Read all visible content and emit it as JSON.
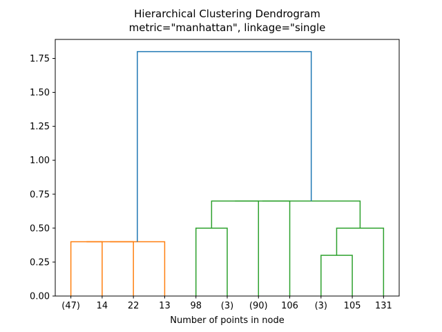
{
  "figure": {
    "background": "#ffffff",
    "axes_edge_color": "#000000"
  },
  "chart_data": {
    "type": "dendrogram",
    "title_line1": "Hierarchical Clustering Dendrogram",
    "title_line2": "metric=\"manhattan\", linkage=\"single",
    "xlabel": "Number of points in node",
    "ylabel": "",
    "legend": "none",
    "grid": false,
    "xlim": [
      0,
      110
    ],
    "ylim": [
      0,
      1.89
    ],
    "yticks": [
      {
        "v": 0.0,
        "label": "0.00"
      },
      {
        "v": 0.25,
        "label": "0.25"
      },
      {
        "v": 0.5,
        "label": "0.50"
      },
      {
        "v": 0.75,
        "label": "0.75"
      },
      {
        "v": 1.0,
        "label": "1.00"
      },
      {
        "v": 1.25,
        "label": "1.25"
      },
      {
        "v": 1.5,
        "label": "1.50"
      },
      {
        "v": 1.75,
        "label": "1.75"
      }
    ],
    "leaves": [
      {
        "label": "(47)",
        "x": 5
      },
      {
        "label": "14",
        "x": 15
      },
      {
        "label": "22",
        "x": 25
      },
      {
        "label": "13",
        "x": 35
      },
      {
        "label": "98",
        "x": 45
      },
      {
        "label": "(3)",
        "x": 55
      },
      {
        "label": "(90)",
        "x": 65
      },
      {
        "label": "106",
        "x": 75
      },
      {
        "label": "(3)",
        "x": 85
      },
      {
        "label": "105",
        "x": 95
      },
      {
        "label": "131",
        "x": 105
      }
    ],
    "colors": {
      "cluster_orange": "#ff7f0e",
      "cluster_green": "#2ca02c",
      "root_blue": "#1f77b4"
    },
    "links": [
      {
        "color": "#ff7f0e",
        "x1": 5,
        "y1": 0.0,
        "x2": 15,
        "y2": 0.0,
        "h": 0.4
      },
      {
        "color": "#ff7f0e",
        "x1": 10,
        "y1": 0.4,
        "x2": 25,
        "y2": 0.0,
        "h": 0.4
      },
      {
        "color": "#ff7f0e",
        "x1": 17.5,
        "y1": 0.4,
        "x2": 35,
        "y2": 0.0,
        "h": 0.4
      },
      {
        "color": "#2ca02c",
        "x1": 45,
        "y1": 0.0,
        "x2": 55,
        "y2": 0.0,
        "h": 0.5
      },
      {
        "color": "#2ca02c",
        "x1": 50,
        "y1": 0.5,
        "x2": 65,
        "y2": 0.0,
        "h": 0.7
      },
      {
        "color": "#2ca02c",
        "x1": 57.5,
        "y1": 0.7,
        "x2": 75,
        "y2": 0.0,
        "h": 0.7
      },
      {
        "color": "#2ca02c",
        "x1": 85,
        "y1": 0.0,
        "x2": 95,
        "y2": 0.0,
        "h": 0.3
      },
      {
        "color": "#2ca02c",
        "x1": 90,
        "y1": 0.3,
        "x2": 105,
        "y2": 0.0,
        "h": 0.5
      },
      {
        "color": "#2ca02c",
        "x1": 66.25,
        "y1": 0.7,
        "x2": 97.5,
        "y2": 0.5,
        "h": 0.7
      },
      {
        "color": "#1f77b4",
        "x1": 26.25,
        "y1": 0.4,
        "x2": 81.875,
        "y2": 0.7,
        "h": 1.8
      }
    ]
  }
}
